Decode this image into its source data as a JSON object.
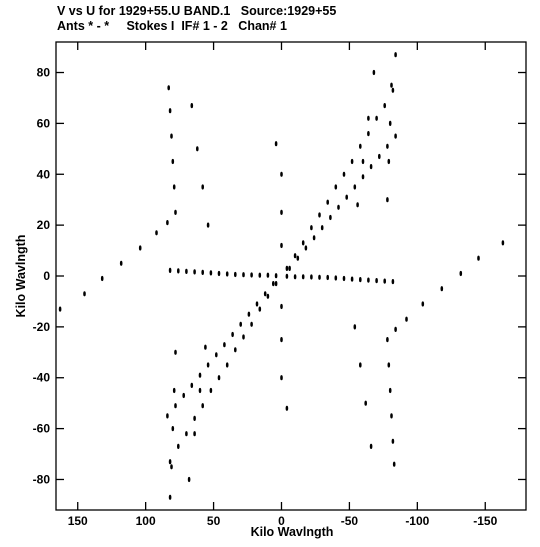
{
  "header": {
    "line1": "V vs U for 1929+55.U BAND.1   Source:1929+55",
    "line2": "Ants * - *     Stokes I  IF# 1 - 2   Chan# 1"
  },
  "chart_data": {
    "type": "scatter",
    "title": "V vs U for 1929+55.U BAND.1   Source:1929+55",
    "subtitle": "Ants * - *     Stokes I  IF# 1 - 2   Chan# 1",
    "xlabel": "Kilo Wavlngth",
    "ylabel": "Kilo Wavlngth",
    "xlim": [
      166,
      -180
    ],
    "ylim": [
      -92,
      92
    ],
    "x_inverted": true,
    "x_ticks": [
      150,
      100,
      50,
      0,
      -50,
      -100,
      -150
    ],
    "x_tick_labels": [
      "150",
      "100",
      "50",
      "0",
      "-50",
      "-100",
      "-150"
    ],
    "y_ticks": [
      80,
      60,
      40,
      20,
      0,
      -20,
      -40,
      -60,
      -80
    ],
    "y_tick_labels": [
      "80",
      "60",
      "40",
      "20",
      "0",
      "-20",
      "-40",
      "-60",
      "-80"
    ],
    "grid": false,
    "marker_color": "#000000",
    "description_of_pattern": "six-armed uv coverage: point-symmetric arms along ~0, ~60, ~120 degrees in the u-v plane",
    "arms": [
      {
        "u": [
          4,
          10,
          16,
          22,
          28,
          34,
          40,
          46,
          52,
          58,
          64,
          70,
          76,
          82
        ],
        "v": [
          0.1,
          0.3,
          0.3,
          0.4,
          0.5,
          0.6,
          0.8,
          1.0,
          1.2,
          1.4,
          1.6,
          1.8,
          2.0,
          2.2
        ]
      },
      {
        "u": [
          -4,
          -10,
          -16,
          -22,
          -28,
          -34,
          -40,
          -46,
          -52,
          -58,
          -64,
          -70,
          -76,
          -82
        ],
        "v": [
          3,
          8,
          13,
          19,
          24,
          29,
          35,
          40,
          45,
          51,
          56,
          62,
          67,
          73
        ]
      },
      {
        "u": [
          6,
          12,
          18,
          24,
          30,
          36,
          42,
          48,
          54,
          60,
          66,
          72,
          78,
          84
        ],
        "v": [
          -3,
          -7,
          -11,
          -15,
          -19,
          -23,
          -27,
          -31,
          -35,
          -39,
          -43,
          -47,
          -51,
          -55
        ]
      }
    ],
    "trace_points": [
      {
        "u": 83,
        "v": 74
      },
      {
        "u": 82,
        "v": 65
      },
      {
        "u": 81,
        "v": 55
      },
      {
        "u": 80,
        "v": 45
      },
      {
        "u": 79,
        "v": 35
      },
      {
        "u": 78,
        "v": 25
      },
      {
        "u": 78,
        "v": -30
      },
      {
        "u": 79,
        "v": -45
      },
      {
        "u": 80,
        "v": -60
      },
      {
        "u": 81,
        "v": -75
      },
      {
        "u": 82,
        "v": -87
      },
      {
        "u": -83,
        "v": -74
      },
      {
        "u": -82,
        "v": -65
      },
      {
        "u": -81,
        "v": -55
      },
      {
        "u": -80,
        "v": -45
      },
      {
        "u": -79,
        "v": -35
      },
      {
        "u": -78,
        "v": -25
      },
      {
        "u": -78,
        "v": 30
      },
      {
        "u": -79,
        "v": 45
      },
      {
        "u": -80,
        "v": 60
      },
      {
        "u": -81,
        "v": 75
      },
      {
        "u": -84,
        "v": 87
      },
      {
        "u": 163,
        "v": -13
      },
      {
        "u": 145,
        "v": -7
      },
      {
        "u": 132,
        "v": -1
      },
      {
        "u": 118,
        "v": 5
      },
      {
        "u": 104,
        "v": 11
      },
      {
        "u": 92,
        "v": 17
      },
      {
        "u": 84,
        "v": 21
      },
      {
        "u": -163,
        "v": 13
      },
      {
        "u": -145,
        "v": 7
      },
      {
        "u": -132,
        "v": 1
      },
      {
        "u": -118,
        "v": -5
      },
      {
        "u": -104,
        "v": -11
      },
      {
        "u": -92,
        "v": -17
      },
      {
        "u": -84,
        "v": -21
      },
      {
        "u": 66,
        "v": 67
      },
      {
        "u": 62,
        "v": 50
      },
      {
        "u": 58,
        "v": 35
      },
      {
        "u": 54,
        "v": 20
      },
      {
        "u": -66,
        "v": -67
      },
      {
        "u": -62,
        "v": -50
      },
      {
        "u": -58,
        "v": -35
      },
      {
        "u": -54,
        "v": -20
      },
      {
        "u": 68,
        "v": -80
      },
      {
        "u": 64,
        "v": -62
      },
      {
        "u": 60,
        "v": -45
      },
      {
        "u": 56,
        "v": -28
      },
      {
        "u": -68,
        "v": 80
      },
      {
        "u": -64,
        "v": 62
      },
      {
        "u": -60,
        "v": 45
      },
      {
        "u": -56,
        "v": 28
      },
      {
        "u": 4,
        "v": 52
      },
      {
        "u": -4,
        "v": -52
      },
      {
        "u": 0,
        "v": 40
      },
      {
        "u": 0,
        "v": -40
      },
      {
        "u": 0,
        "v": 25
      },
      {
        "u": 0,
        "v": -25
      },
      {
        "u": 0,
        "v": 12
      },
      {
        "u": 0,
        "v": -12
      }
    ]
  }
}
